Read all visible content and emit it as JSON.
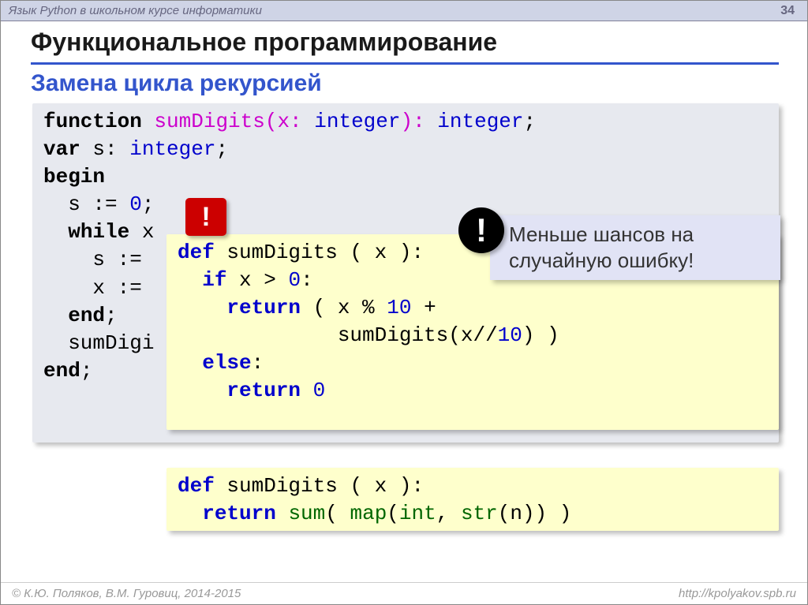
{
  "header": {
    "course_title": "Язык Python в школьном курсе информатики",
    "page_number": "34"
  },
  "title": "Функциональное программирование",
  "subtitle": "Замена цикла рекурсией",
  "colors": {
    "topbar_bg": "#cfd4e6",
    "title_underline": "#3355cc",
    "subtitle_color": "#3355cc",
    "pascal_bg": "#e7e9ef",
    "python_bg": "#feffcc",
    "note_bg": "#e1e3f5",
    "keyword_color": "#0000cc",
    "number_color": "#0000cc",
    "builtin_color": "#006600",
    "pascal_fn_color": "#cc00cc",
    "red_badge": "#cc0000",
    "black_badge": "#000000",
    "shadow": "rgba(0,0,0,0.25)"
  },
  "typography": {
    "title_fontsize": 32,
    "subtitle_fontsize": 30,
    "code_fontsize": 26,
    "code_font": "Courier New",
    "ui_font": "Arial"
  },
  "pascal_code": {
    "l1a": "function",
    "l1b": " sumDigits(x: ",
    "l1c": "integer",
    "l1d": "): ",
    "l1e": "integer",
    "l1f": ";",
    "l2a": "var",
    "l2b": " s: ",
    "l2c": "integer",
    "l2d": ";",
    "l3": "begin",
    "l4a": "  s := ",
    "l4b": "0",
    "l4c": ";",
    "l5a": "  ",
    "l5b": "while",
    "l5c": " x",
    "l6": "    s := ",
    "l7": "    x := ",
    "l8a": "  ",
    "l8b": "end",
    "l8c": ";",
    "l9": "  sumDigi",
    "l10a": "end",
    "l10b": ";"
  },
  "python1_code": {
    "l1a": "def",
    "l1b": " sumDigits ( x ):",
    "l2a": "  ",
    "l2b": "if",
    "l2c": " x > ",
    "l2d": "0",
    "l2e": ":",
    "l3a": "    ",
    "l3b": "return",
    "l3c": " ( x % ",
    "l3d": "10",
    "l3e": " +",
    "l4": "             sumDigits(x//",
    "l4b": "10",
    "l4c": ") )",
    "l5a": "  ",
    "l5b": "else",
    "l5c": ":",
    "l6a": "    ",
    "l6b": "return",
    "l6c": " ",
    "l6d": "0"
  },
  "python2_code": {
    "l1a": "def",
    "l1b": " sumDigits ( x ):",
    "l2a": "  ",
    "l2b": "return",
    "l2c": " ",
    "l2d": "sum",
    "l2e": "( ",
    "l2f": "map",
    "l2g": "(",
    "l2h": "int",
    "l2i": ", ",
    "l2j": "str",
    "l2k": "(n)) )"
  },
  "note_text": "Меньше шансов на случайную ошибку!",
  "red_badge": "!",
  "black_badge": "!",
  "footer": {
    "left": "© К.Ю. Поляков, В.М. Гуровиц, 2014-2015",
    "right": "http://kpolyakov.spb.ru"
  }
}
